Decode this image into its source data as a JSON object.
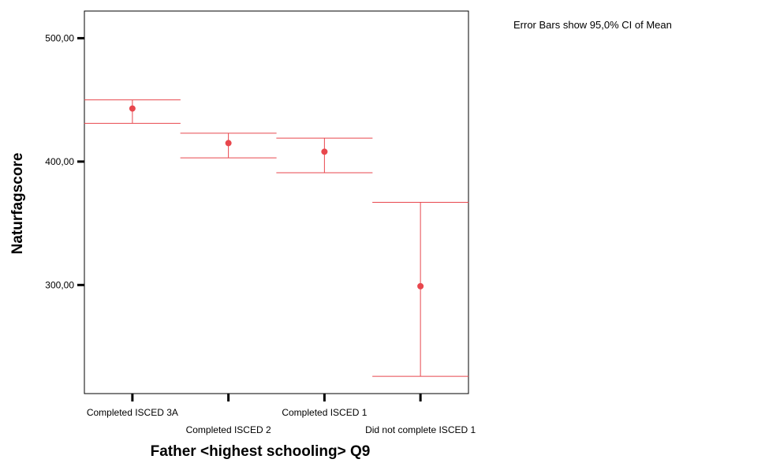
{
  "chart_data": {
    "type": "errorbar",
    "categories": [
      "Completed ISCED 3A",
      "Completed ISCED 2",
      "Completed ISCED 1",
      "Did not complete ISCED 1"
    ],
    "series": [
      {
        "mean": [
          443,
          415,
          408,
          299
        ],
        "ci_lower": [
          431,
          403,
          391,
          226
        ],
        "ci_upper": [
          450,
          423,
          419,
          367
        ]
      }
    ],
    "xlabel": "Father <highest schooling> Q9",
    "ylabel": "Naturfagscore",
    "y_ticks": [
      {
        "value": 300,
        "label": "300,00"
      },
      {
        "value": 400,
        "label": "400,00"
      },
      {
        "value": 500,
        "label": "500,00"
      }
    ],
    "ylim": [
      212,
      522
    ],
    "annotation": "Error Bars show 95,0% CI of Mean",
    "grid": false,
    "colors": {
      "series": "#e8474d",
      "axis": "#000000"
    }
  }
}
